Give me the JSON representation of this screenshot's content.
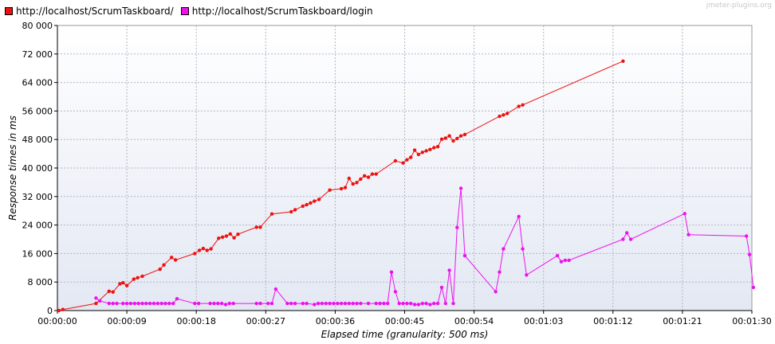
{
  "brand": "jmeter-plugins.org",
  "chart_data": {
    "type": "line",
    "title": "",
    "xlabel": "Elapsed time (granularity: 500 ms)",
    "ylabel": "Response times in ms",
    "xlim": [
      0,
      90
    ],
    "ylim": [
      0,
      80000
    ],
    "x_unit": "seconds",
    "x_ticks": [
      "00:00:00",
      "00:00:09",
      "00:00:18",
      "00:00:27",
      "00:00:36",
      "00:00:45",
      "00:00:54",
      "00:01:03",
      "00:01:12",
      "00:01:21",
      "00:01:30"
    ],
    "y_ticks": [
      "0",
      "8 000",
      "16 000",
      "24 000",
      "32 000",
      "40 000",
      "48 000",
      "56 000",
      "64 000",
      "72 000",
      "80 000"
    ],
    "grid": true,
    "legend_position": "top-left",
    "series": [
      {
        "name": "http://localhost/ScrumTaskboard/",
        "color": "#ee1111",
        "x": [
          0.2,
          0.7,
          5.0,
          6.7,
          7.2,
          8.1,
          8.5,
          9.0,
          9.9,
          10.4,
          11.0,
          13.3,
          13.8,
          14.8,
          15.3,
          17.8,
          18.4,
          18.9,
          19.4,
          19.9,
          20.9,
          21.4,
          21.9,
          22.4,
          22.9,
          23.4,
          25.8,
          26.3,
          27.8,
          30.3,
          30.8,
          31.8,
          32.3,
          32.8,
          33.3,
          33.9,
          35.3,
          36.8,
          37.3,
          37.8,
          38.3,
          38.8,
          39.3,
          39.8,
          40.3,
          40.8,
          41.3,
          43.8,
          44.8,
          45.3,
          45.8,
          46.3,
          46.8,
          47.3,
          47.8,
          48.3,
          48.8,
          49.3,
          49.8,
          50.3,
          50.8,
          51.3,
          51.8,
          52.3,
          52.8,
          57.3,
          57.8,
          58.3,
          59.8,
          60.3,
          73.3
        ],
        "y": [
          0,
          300,
          2000,
          5400,
          5200,
          7500,
          7800,
          7000,
          8800,
          9200,
          9600,
          11600,
          12800,
          14900,
          14200,
          16000,
          16900,
          17400,
          16900,
          17300,
          20300,
          20600,
          20900,
          21500,
          20400,
          21400,
          23400,
          23400,
          27100,
          27700,
          28300,
          29300,
          29700,
          30200,
          30700,
          31200,
          33800,
          34200,
          34500,
          37100,
          35500,
          35900,
          36900,
          37800,
          37400,
          38300,
          38300,
          42000,
          41400,
          42300,
          43000,
          45000,
          43800,
          44400,
          44800,
          45200,
          45700,
          46000,
          48100,
          48400,
          49000,
          47600,
          48300,
          49000,
          49400,
          54500,
          54900,
          55300,
          57300,
          57700,
          70000
        ]
      },
      {
        "name": "http://localhost/ScrumTaskboard/login",
        "color": "#ee11ee",
        "x": [
          5.0,
          5.5,
          6.7,
          7.2,
          7.7,
          8.5,
          9.0,
          9.5,
          10.0,
          10.5,
          11.0,
          11.5,
          12.0,
          12.5,
          13.0,
          13.5,
          14.0,
          14.5,
          15.0,
          15.5,
          17.8,
          18.3,
          19.8,
          20.3,
          20.8,
          21.3,
          21.8,
          22.3,
          22.8,
          25.8,
          26.3,
          27.3,
          27.8,
          28.3,
          29.8,
          30.3,
          30.8,
          31.8,
          32.3,
          33.3,
          33.8,
          34.3,
          34.8,
          35.3,
          35.8,
          36.3,
          36.8,
          37.3,
          37.8,
          38.3,
          38.8,
          39.3,
          40.3,
          41.3,
          41.8,
          42.3,
          42.8,
          43.3,
          43.8,
          44.3,
          44.8,
          45.3,
          45.8,
          46.3,
          46.8,
          47.3,
          47.8,
          48.3,
          48.8,
          49.3,
          49.8,
          50.3,
          50.8,
          51.3,
          51.8,
          52.3,
          52.8,
          56.8,
          57.3,
          57.8,
          59.8,
          60.3,
          60.8,
          64.8,
          65.3,
          65.8,
          66.3,
          73.3,
          73.8,
          74.3,
          81.3,
          81.8,
          89.3,
          89.7,
          90.2
        ],
        "y": [
          3500,
          2700,
          2000,
          2000,
          2000,
          2000,
          2000,
          2000,
          2000,
          2000,
          2000,
          2000,
          2000,
          2000,
          2000,
          2000,
          2000,
          2000,
          2000,
          3300,
          2000,
          2000,
          2000,
          2000,
          2000,
          2000,
          1700,
          2000,
          2000,
          2000,
          2000,
          2000,
          2000,
          6000,
          2000,
          2000,
          2000,
          2000,
          2000,
          1700,
          2000,
          2000,
          2000,
          2000,
          2000,
          2000,
          2000,
          2000,
          2000,
          2000,
          2000,
          2000,
          2000,
          2000,
          2000,
          2000,
          2000,
          10800,
          5300,
          2000,
          2000,
          2000,
          2000,
          1700,
          1700,
          2000,
          2000,
          1700,
          2000,
          2000,
          6500,
          2000,
          11300,
          2000,
          23300,
          34300,
          15400,
          5300,
          10800,
          17300,
          26400,
          17300,
          10000,
          15400,
          13700,
          14100,
          14100,
          20000,
          21800,
          20000,
          27200,
          21300,
          20900,
          15700,
          6500
        ]
      }
    ]
  }
}
